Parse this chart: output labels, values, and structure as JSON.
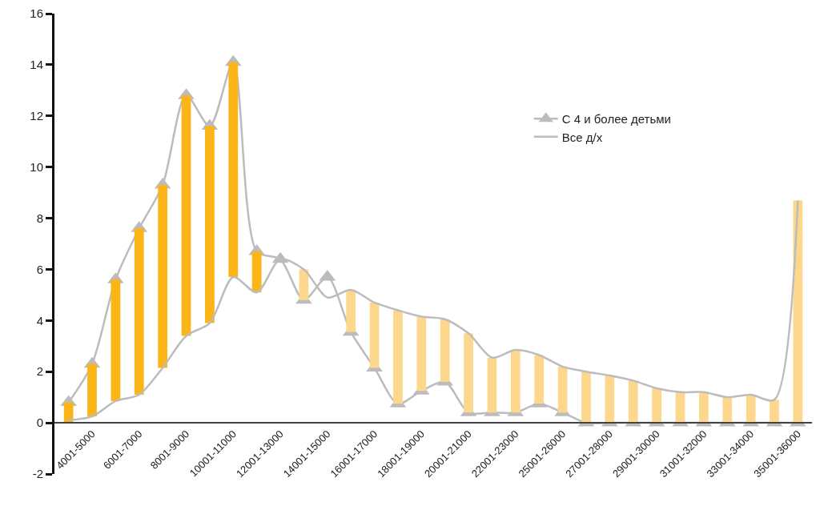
{
  "chart_data": {
    "type": "line",
    "categories": [
      null,
      "4001-5000",
      null,
      "6001-7000",
      null,
      "8001-9000",
      null,
      "10001-11000",
      null,
      "12001-13000",
      null,
      "14001-15000",
      null,
      "16001-17000",
      null,
      "18001-19000",
      null,
      "20001-21000",
      null,
      "22001-23000",
      null,
      "25001-26000",
      null,
      "27001-28000",
      null,
      "29001-30000",
      null,
      "31001-32000",
      null,
      "33001-34000",
      null,
      "35001-36000"
    ],
    "series": [
      {
        "type": "bar",
        "colors": [
          "#fbb516",
          "#fbb516",
          "#fbb516",
          "#fbb516",
          "#fbb516",
          "#fbb516",
          "#fbb516",
          "#fbb516",
          "#fbb516",
          null,
          "#fdd88c",
          null,
          "#fdd88c",
          "#fdd88c",
          "#fdd88c",
          "#fdd88c",
          "#fdd88c",
          "#fdd88c",
          "#fdd88c",
          "#fdd88c",
          "#fdd88c",
          "#fdd88c",
          "#fdd88c",
          "#fdd88c",
          "#fdd88c",
          "#fdd88c",
          "#fdd88c",
          "#fdd88c",
          "#fdd88c",
          "#fdd88c",
          "#fdd88c",
          "#fdd88c"
        ],
        "base": [
          0,
          0.25,
          0.85,
          1.1,
          2.15,
          3.4,
          3.9,
          5.7,
          5.1,
          null,
          4.8,
          null,
          3.55,
          2.15,
          0.75,
          1.25,
          1.6,
          0.4,
          0.4,
          0.4,
          0.75,
          0.4,
          0,
          0,
          0,
          0,
          0,
          0,
          0,
          0,
          0,
          0
        ],
        "values": [
          0.8,
          2.05,
          4.75,
          6.5,
          7.15,
          9.4,
          7.7,
          8.4,
          1.6,
          null,
          1.2,
          null,
          1.65,
          2.55,
          3.65,
          2.9,
          2.45,
          3.1,
          2.15,
          2.45,
          1.9,
          1.8,
          2.0,
          1.85,
          1.65,
          1.35,
          1.2,
          1.2,
          1.0,
          1.1,
          0.9,
          8.7
        ]
      },
      {
        "name": "С 4 и более детьми",
        "color": "#bcbcbf",
        "marker": "triangle",
        "line_style": "solid",
        "values": [
          0.8,
          2.3,
          5.6,
          7.6,
          9.3,
          12.8,
          11.6,
          14.1,
          6.7,
          6.4,
          4.8,
          5.7,
          3.55,
          2.15,
          0.75,
          1.25,
          1.6,
          0.4,
          0.4,
          0.4,
          0.75,
          0.4,
          0,
          0,
          0,
          0,
          0,
          0,
          0,
          0,
          0,
          0
        ]
      },
      {
        "name": "Все д/х",
        "color": "#bcbcbf",
        "marker": "none",
        "line_style": "solid",
        "values": [
          0.1,
          0.25,
          0.85,
          1.1,
          2.15,
          3.4,
          3.9,
          5.7,
          5.1,
          6.4,
          6.0,
          4.9,
          5.2,
          4.7,
          4.4,
          4.15,
          4.05,
          3.5,
          2.55,
          2.85,
          2.65,
          2.2,
          2.0,
          1.85,
          1.65,
          1.35,
          1.2,
          1.2,
          1.0,
          1.1,
          0.9,
          8.7
        ]
      }
    ],
    "ylim": [
      -2,
      16
    ],
    "yticks": [
      -2,
      0,
      2,
      4,
      6,
      8,
      10,
      12,
      14,
      16
    ],
    "grid": false,
    "legend": "top right"
  }
}
